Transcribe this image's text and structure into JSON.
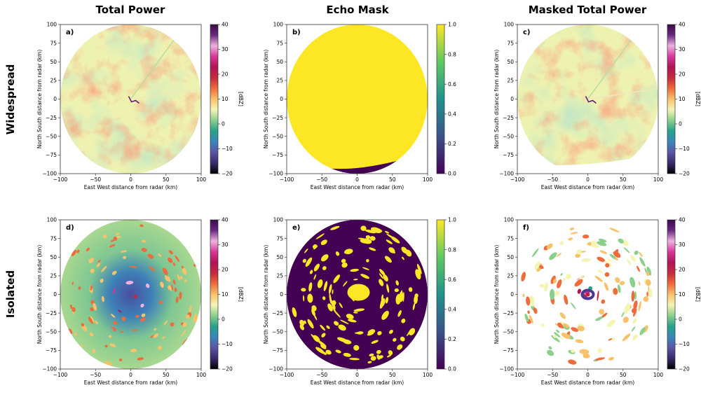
{
  "column_titles": [
    "Total Power",
    "Echo Mask",
    "Masked Total Power"
  ],
  "row_titles": [
    "Widespread",
    "Isolated"
  ],
  "colors": {
    "dbz_colormap": [
      "#000000",
      "#3b2a6b",
      "#5a55a6",
      "#3a86bb",
      "#26a28a",
      "#8bcf8c",
      "#f4f4b4",
      "#f9c26a",
      "#ee6b3c",
      "#c42a3c",
      "#b01456",
      "#d8379a",
      "#eeb3e0",
      "#6a2a80",
      "#3a0a4a"
    ],
    "mask_colormap": [
      "#440154",
      "#3b528b",
      "#21918c",
      "#5ec962",
      "#fde725"
    ]
  },
  "chart_data": [
    {
      "type": "heatmap",
      "panel_label": "a)",
      "row": "Widespread",
      "column": "Total Power",
      "xlabel": "East West distance from radar (km)",
      "ylabel": "North South distance from radar (km)",
      "xlim": [
        -100,
        100
      ],
      "ylim": [
        -100,
        100
      ],
      "xticks": [
        -100,
        -50,
        0,
        50,
        100
      ],
      "yticks": [
        -100,
        -75,
        -50,
        -25,
        0,
        25,
        50,
        75,
        100
      ],
      "colorbar": {
        "label": "[dBZ]",
        "range": [
          -20,
          40
        ],
        "ticks": [
          -20,
          -10,
          0,
          10,
          20,
          30,
          40
        ],
        "colormap": "dbz"
      }
    },
    {
      "type": "heatmap",
      "panel_label": "b)",
      "row": "Widespread",
      "column": "Echo Mask",
      "xlabel": "East West distance from radar (km)",
      "ylabel": "North South distance from radar (km)",
      "xlim": [
        -100,
        100
      ],
      "ylim": [
        -100,
        100
      ],
      "xticks": [
        -100,
        -50,
        0,
        50,
        100
      ],
      "yticks": [
        -100,
        -75,
        -50,
        -25,
        0,
        25,
        50,
        75,
        100
      ],
      "colorbar": {
        "label": "",
        "range": [
          0,
          1
        ],
        "ticks": [
          "0.0",
          "0.2",
          "0.4",
          "0.6",
          "0.8",
          "1.0"
        ],
        "colormap": "viridis"
      }
    },
    {
      "type": "heatmap",
      "panel_label": "c)",
      "row": "Widespread",
      "column": "Masked Total Power",
      "xlabel": "East West distance from radar (km)",
      "ylabel": "North South distance from radar (km)",
      "xlim": [
        -100,
        100
      ],
      "ylim": [
        -100,
        100
      ],
      "xticks": [
        -100,
        -50,
        0,
        50,
        100
      ],
      "yticks": [
        -100,
        -75,
        -50,
        -25,
        0,
        25,
        50,
        75,
        100
      ],
      "colorbar": {
        "label": "[dBZ]",
        "range": [
          -20,
          40
        ],
        "ticks": [
          -20,
          -10,
          0,
          10,
          20,
          30,
          40
        ],
        "colormap": "dbz"
      }
    },
    {
      "type": "heatmap",
      "panel_label": "d)",
      "row": "Isolated",
      "column": "Total Power",
      "xlabel": "East West distance from radar (km)",
      "ylabel": "North South distance from radar (km)",
      "xlim": [
        -100,
        100
      ],
      "ylim": [
        -100,
        100
      ],
      "xticks": [
        -100,
        -50,
        0,
        50,
        100
      ],
      "yticks": [
        -100,
        -75,
        -50,
        -25,
        0,
        25,
        50,
        75,
        100
      ],
      "colorbar": {
        "label": "[dBZ]",
        "range": [
          -20,
          40
        ],
        "ticks": [
          -20,
          -10,
          0,
          10,
          20,
          30,
          40
        ],
        "colormap": "dbz"
      }
    },
    {
      "type": "heatmap",
      "panel_label": "e)",
      "row": "Isolated",
      "column": "Echo Mask",
      "xlabel": "East West distance from radar (km)",
      "ylabel": "North South distance from radar (km)",
      "xlim": [
        -100,
        100
      ],
      "ylim": [
        -100,
        100
      ],
      "xticks": [
        -100,
        -50,
        0,
        50,
        100
      ],
      "yticks": [
        -100,
        -75,
        -50,
        -25,
        0,
        25,
        50,
        75,
        100
      ],
      "colorbar": {
        "label": "",
        "range": [
          0,
          1
        ],
        "ticks": [
          "0.0",
          "0.2",
          "0.4",
          "0.6",
          "0.8",
          "1.0"
        ],
        "colormap": "viridis"
      }
    },
    {
      "type": "heatmap",
      "panel_label": "f)",
      "row": "Isolated",
      "column": "Masked Total Power",
      "xlabel": "East West distance from radar (km)",
      "ylabel": "North South distance from radar (km)",
      "xlim": [
        -100,
        100
      ],
      "ylim": [
        -100,
        100
      ],
      "xticks": [
        -100,
        -50,
        0,
        50,
        100
      ],
      "yticks": [
        -100,
        -75,
        -50,
        -25,
        0,
        25,
        50,
        75,
        100
      ],
      "colorbar": {
        "label": "[dBZ]",
        "range": [
          -20,
          40
        ],
        "ticks": [
          -20,
          -10,
          0,
          10,
          20,
          30,
          40
        ],
        "colormap": "dbz"
      }
    }
  ]
}
